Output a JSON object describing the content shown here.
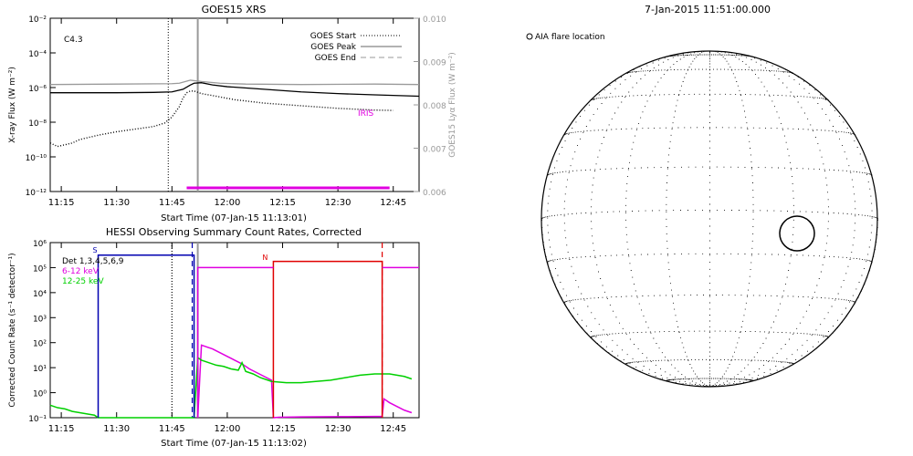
{
  "chart_data": [
    {
      "type": "line",
      "title": "GOES15 XRS",
      "xlabel": "Start Time (07-Jan-15 11:13:01)",
      "ylabel": "X-ray Flux (W m⁻²)",
      "ylabel2": "GOES15 Lyα Flux (W m⁻²)",
      "x_ticks": [
        "11:15",
        "11:30",
        "11:45",
        "12:00",
        "12:15",
        "12:30",
        "12:45"
      ],
      "x_tick_minutes": [
        15,
        30,
        45,
        60,
        75,
        90,
        105
      ],
      "xlim_minutes": [
        12,
        112
      ],
      "y_ticks": [
        "10⁻²",
        "10⁻⁴",
        "10⁻⁶",
        "10⁻⁸",
        "10⁻¹⁰",
        "10⁻¹²"
      ],
      "y_exponents": [
        -2,
        -4,
        -6,
        -8,
        -10,
        -12
      ],
      "ylim_log": [
        -12,
        -2
      ],
      "y2_ticks": [
        "0.010",
        "0.009",
        "0.008",
        "0.007",
        "0.006"
      ],
      "ylim2": [
        0.006,
        0.01
      ],
      "flare_class": "C4.3",
      "legend": [
        "GOES Start",
        "GOES Peak",
        "GOES End"
      ],
      "goes_start_min": 44,
      "goes_peak_min": 52,
      "iris_label": "IRIS",
      "iris_interval_min": [
        49,
        104
      ],
      "series": [
        {
          "name": "",
          "style": "solid",
          "color": "#000000",
          "x": [
            12,
            30,
            40,
            45,
            48,
            50,
            51,
            53,
            56,
            60,
            70,
            80,
            90,
            100,
            112
          ],
          "log_y": [
            -6.3,
            -6.3,
            -6.28,
            -6.25,
            -6.1,
            -5.85,
            -5.75,
            -5.72,
            -5.85,
            -5.95,
            -6.1,
            -6.25,
            -6.35,
            -6.42,
            -6.5
          ]
        },
        {
          "name": "",
          "style": "dotted",
          "color": "#000000",
          "x": [
            12,
            14,
            18,
            20,
            25,
            30,
            35,
            40,
            43,
            45,
            47,
            48,
            49,
            50,
            51,
            53,
            57,
            62,
            70,
            80,
            90,
            100,
            105
          ],
          "log_y": [
            -9.2,
            -9.4,
            -9.2,
            -9.0,
            -8.75,
            -8.55,
            -8.4,
            -8.25,
            -8.05,
            -7.7,
            -7.1,
            -6.6,
            -6.3,
            -6.2,
            -6.2,
            -6.35,
            -6.5,
            -6.7,
            -6.9,
            -7.05,
            -7.2,
            -7.3,
            -7.32
          ]
        },
        {
          "name": "",
          "style": "solid",
          "color": "#9a9a9a",
          "x": [
            12,
            30,
            45,
            47,
            50,
            53,
            58,
            65,
            80,
            100,
            112
          ],
          "lya": [
            0.00847,
            0.00848,
            0.00849,
            0.0085,
            0.00857,
            0.00854,
            0.0085,
            0.00848,
            0.00847,
            0.00848,
            0.00847
          ]
        }
      ]
    },
    {
      "type": "line",
      "title": "HESSI Observing Summary Count Rates, Corrected",
      "xlabel": "Start Time (07-Jan-15 11:13:02)",
      "ylabel": "Corrected Count Rate (s⁻¹ detector⁻¹)",
      "x_ticks": [
        "11:15",
        "11:30",
        "11:45",
        "12:00",
        "12:15",
        "12:30",
        "12:45"
      ],
      "x_tick_minutes": [
        15,
        30,
        45,
        60,
        75,
        90,
        105
      ],
      "xlim_minutes": [
        12,
        112
      ],
      "y_ticks": [
        "10⁶",
        "10⁵",
        "10⁴",
        "10³",
        "10²",
        "10¹",
        "10⁰",
        "10⁻¹"
      ],
      "y_exponents": [
        6,
        5,
        4,
        3,
        2,
        1,
        0,
        -1
      ],
      "ylim_log": [
        -1,
        6
      ],
      "legend_title": "Det 1,3,4,5,6,9",
      "series": [
        {
          "name": "6-12 keV",
          "color": "#e000e0",
          "x": [
            52,
            53,
            54,
            56,
            58,
            60,
            62,
            64,
            66,
            68,
            70,
            72,
            72.5,
            74,
            80,
            90,
            100,
            102,
            102.5,
            104,
            106,
            108,
            110
          ],
          "log_y": [
            -1,
            1.9,
            1.85,
            1.75,
            1.6,
            1.45,
            1.3,
            1.15,
            0.95,
            0.8,
            0.65,
            0.5,
            -1,
            -0.98,
            -0.97,
            -0.96,
            -0.95,
            -0.95,
            -0.25,
            -0.4,
            -0.55,
            -0.7,
            -0.8
          ]
        },
        {
          "name": "12-25 keV",
          "color": "#00d000",
          "x": [
            12,
            14,
            16,
            18,
            20,
            22,
            24,
            25,
            45,
            51,
            52,
            53,
            55,
            57,
            59,
            61,
            63,
            64,
            65,
            67,
            69,
            72,
            76,
            80,
            84,
            88,
            92,
            96,
            100,
            104,
            108,
            110
          ],
          "log_y": [
            -0.5,
            -0.6,
            -0.65,
            -0.75,
            -0.8,
            -0.85,
            -0.9,
            -1,
            -1,
            -1,
            1.4,
            1.3,
            1.2,
            1.1,
            1.05,
            0.95,
            0.9,
            1.2,
            0.85,
            0.75,
            0.6,
            0.45,
            0.4,
            0.4,
            0.45,
            0.5,
            0.6,
            0.7,
            0.75,
            0.75,
            0.65,
            0.55
          ]
        },
        {
          "name": "",
          "color": "#0000b0",
          "x": [
            25,
            25,
            51,
            51
          ],
          "log_y": [
            -1,
            5.5,
            5.5,
            -1
          ]
        },
        {
          "name": "",
          "color": "#e00000",
          "x": [
            72.5,
            72.5,
            102,
            102
          ],
          "log_y": [
            -1,
            5.25,
            5.25,
            -1
          ]
        },
        {
          "name": "",
          "color": "#e000e0",
          "x": [
            52,
            52,
            72.5
          ],
          "log_y": [
            -1,
            5,
            5
          ]
        },
        {
          "name": "",
          "color": "#e000e0",
          "x": [
            102,
            112
          ],
          "log_y": [
            5,
            5
          ]
        }
      ],
      "vlines": [
        {
          "x": 50.5,
          "color": "#0000b0",
          "style": "dashed"
        },
        {
          "x": 52,
          "color": "#999999",
          "style": "solid"
        },
        {
          "x": 45,
          "color": "#000000",
          "style": "dotted"
        },
        {
          "x": 102,
          "color": "#e00000",
          "style": "dashed"
        }
      ],
      "markers": [
        {
          "text": "S",
          "x": 25,
          "log_y": 5.6,
          "color": "#0000b0"
        },
        {
          "text": "N",
          "x": 71,
          "log_y": 5.3,
          "color": "#e00000"
        }
      ]
    },
    {
      "type": "other",
      "title": "7-Jan-2015 11:51:00.000",
      "legend": "AIA flare location"
    }
  ]
}
